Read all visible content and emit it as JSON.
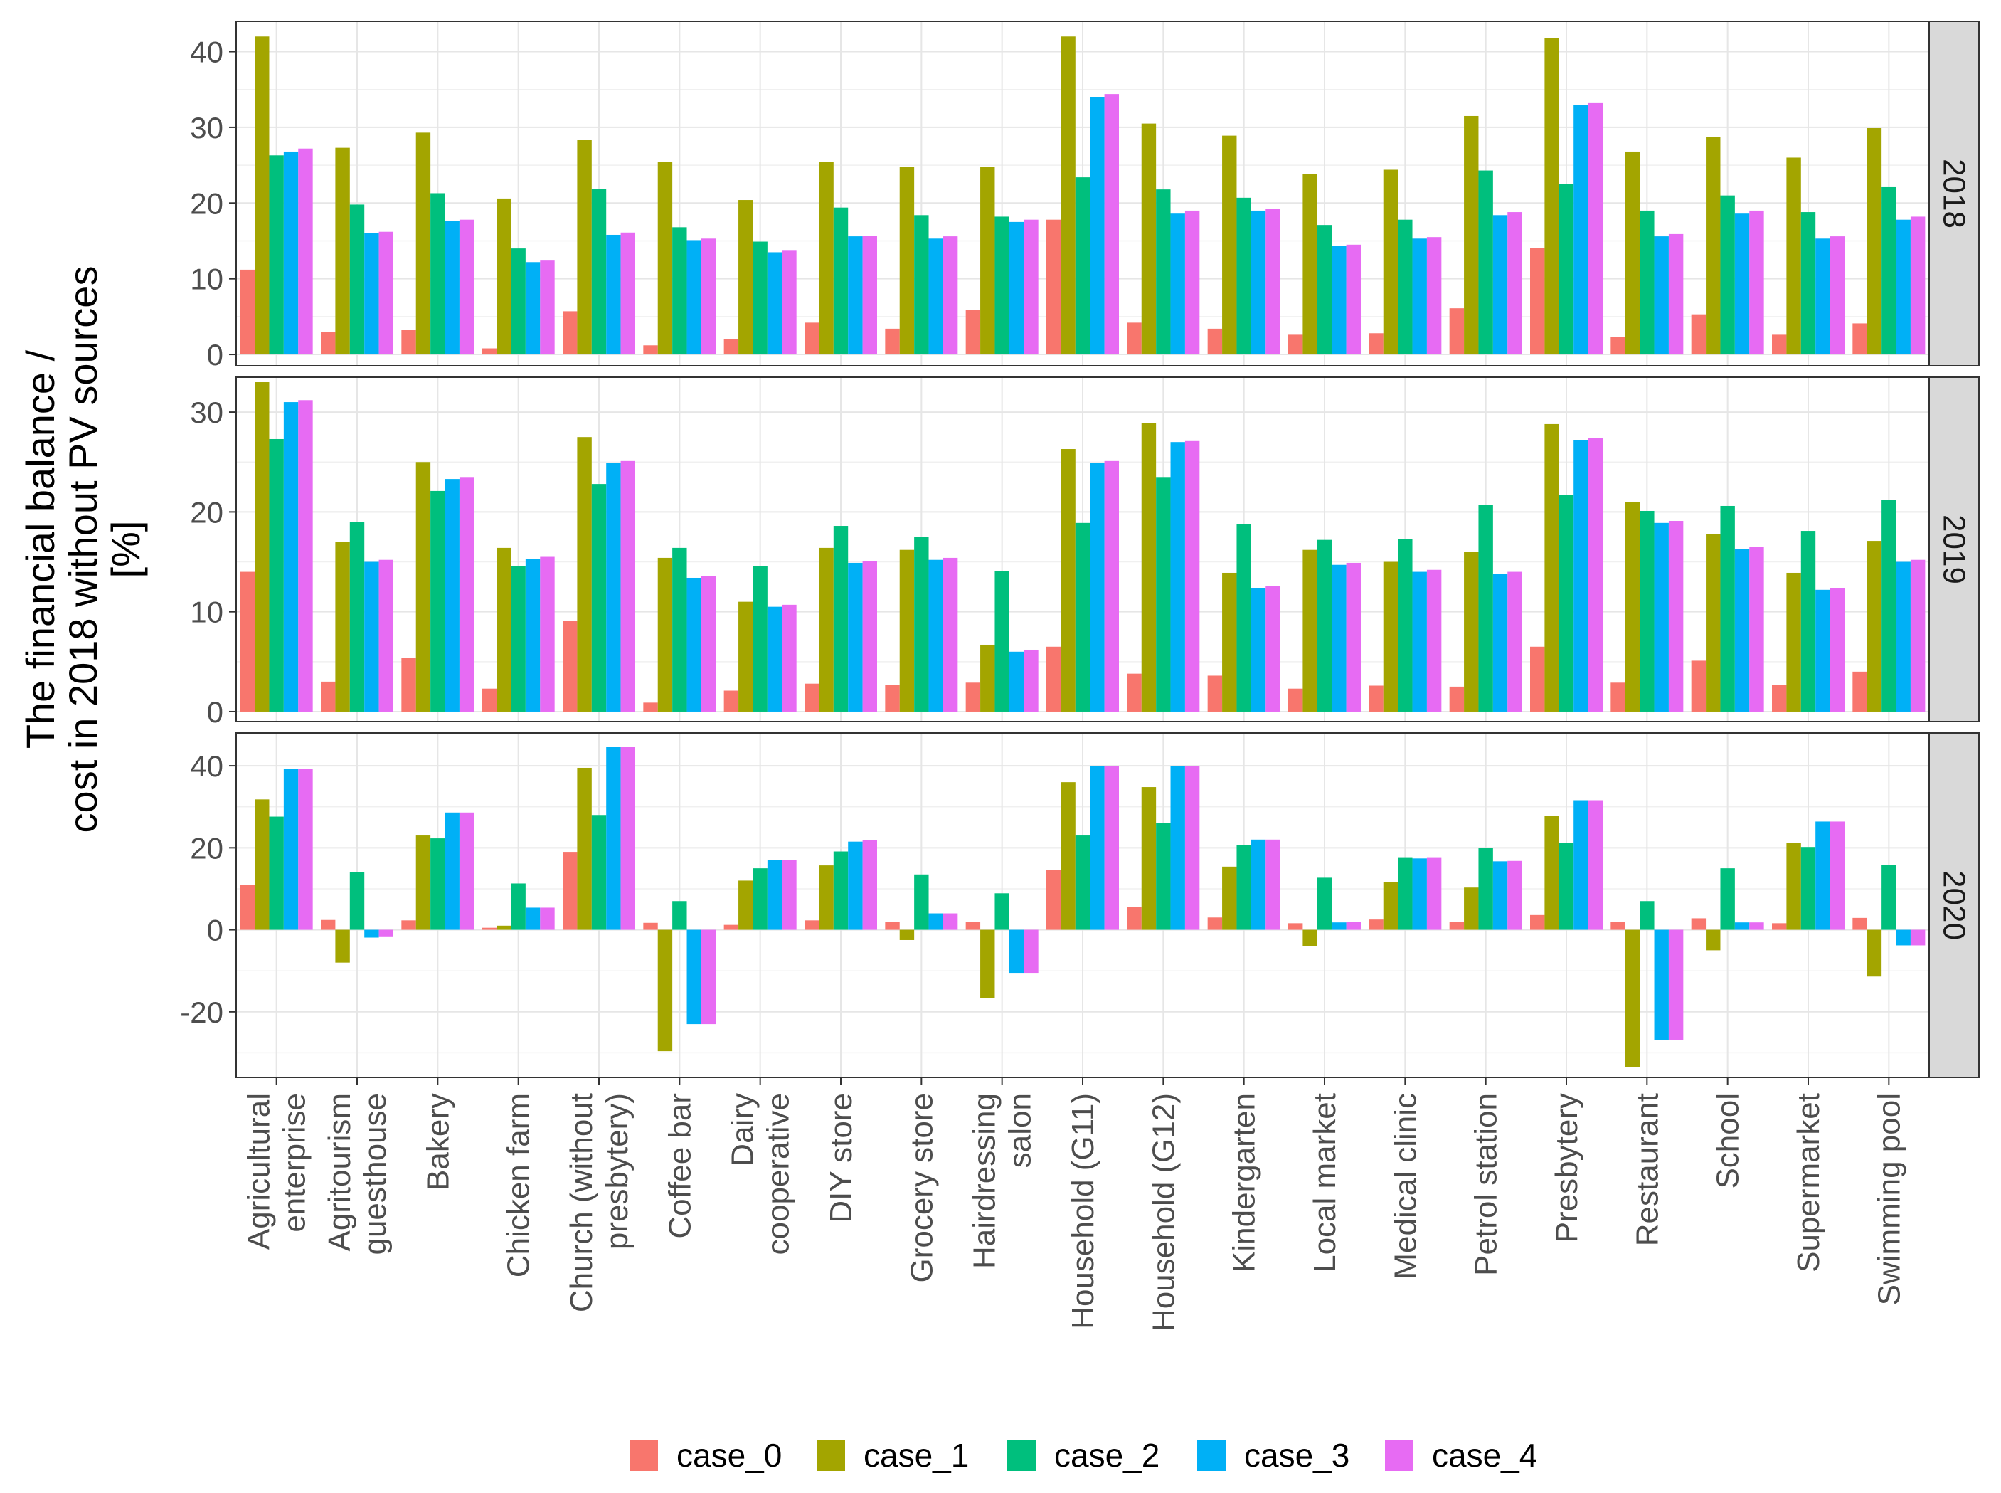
{
  "chart_data": {
    "type": "bar",
    "ylabel_lines": [
      "The financial balance /",
      "cost in 2018 without PV sources",
      "[%]"
    ],
    "xlabel": "",
    "categories": [
      "Agricultural\nenterprise",
      "Agritourism\nguesthouse",
      "Bakery",
      "Chicken farm",
      "Church (without\npresbytery)",
      "Coffee bar",
      "Dairy\ncooperative",
      "DIY store",
      "Grocery store",
      "Hairdressing\nsalon",
      "Household (G11)",
      "Household (G12)",
      "Kindergarten",
      "Local market",
      "Medical clinic",
      "Petrol station",
      "Presbytery",
      "Restaurant",
      "School",
      "Supermarket",
      "Swimming pool"
    ],
    "legend": {
      "position": "bottom",
      "entries": [
        {
          "name": "case_0",
          "color": "#F8766D"
        },
        {
          "name": "case_1",
          "color": "#A3A500"
        },
        {
          "name": "case_2",
          "color": "#00BF7D"
        },
        {
          "name": "case_3",
          "color": "#00B0F6"
        },
        {
          "name": "case_4",
          "color": "#E76BF3"
        }
      ]
    },
    "grid": true,
    "panels": [
      {
        "label": "2018",
        "ylim": [
          -1.5,
          44
        ],
        "yticks": [
          0,
          10,
          20,
          30,
          40
        ],
        "series": [
          {
            "name": "case_0",
            "values": [
              11.2,
              3.0,
              3.2,
              0.8,
              5.7,
              1.2,
              2.0,
              4.2,
              3.4,
              5.9,
              17.8,
              4.2,
              3.4,
              2.6,
              2.8,
              6.1,
              14.1,
              2.3,
              5.3,
              2.6,
              4.1
            ]
          },
          {
            "name": "case_1",
            "values": [
              42.0,
              27.3,
              29.3,
              20.6,
              28.3,
              25.4,
              20.4,
              25.4,
              24.8,
              24.8,
              42.0,
              30.5,
              28.9,
              23.8,
              24.4,
              31.5,
              41.8,
              26.8,
              28.7,
              26.0,
              29.9
            ]
          },
          {
            "name": "case_2",
            "values": [
              26.3,
              19.8,
              21.3,
              14.0,
              21.9,
              16.8,
              14.9,
              19.4,
              18.4,
              18.2,
              23.4,
              21.8,
              20.7,
              17.1,
              17.8,
              24.3,
              22.5,
              19.0,
              21.0,
              18.8,
              22.1
            ]
          },
          {
            "name": "case_3",
            "values": [
              26.8,
              16.0,
              17.6,
              12.2,
              15.8,
              15.1,
              13.5,
              15.6,
              15.3,
              17.5,
              34.0,
              18.6,
              19.0,
              14.3,
              15.3,
              18.4,
              33.0,
              15.6,
              18.6,
              15.3,
              17.8
            ]
          },
          {
            "name": "case_4",
            "values": [
              27.2,
              16.2,
              17.8,
              12.4,
              16.1,
              15.3,
              13.7,
              15.7,
              15.6,
              17.8,
              34.4,
              19.0,
              19.2,
              14.5,
              15.5,
              18.8,
              33.2,
              15.9,
              19.0,
              15.6,
              18.2
            ]
          }
        ]
      },
      {
        "label": "2019",
        "ylim": [
          -1,
          33.5
        ],
        "yticks": [
          0,
          10,
          20,
          30
        ],
        "series": [
          {
            "name": "case_0",
            "values": [
              14.0,
              3.0,
              5.4,
              2.3,
              9.1,
              0.9,
              2.1,
              2.8,
              2.7,
              2.9,
              6.5,
              3.8,
              3.6,
              2.3,
              2.6,
              2.5,
              6.5,
              2.9,
              5.1,
              2.7,
              4.0
            ]
          },
          {
            "name": "case_1",
            "values": [
              33.0,
              17.0,
              25.0,
              16.4,
              27.5,
              15.4,
              11.0,
              16.4,
              16.2,
              6.7,
              26.3,
              28.9,
              13.9,
              16.2,
              15.0,
              16.0,
              28.8,
              21.0,
              17.8,
              13.9,
              17.1
            ]
          },
          {
            "name": "case_2",
            "values": [
              27.3,
              19.0,
              22.1,
              14.6,
              22.8,
              16.4,
              14.6,
              18.6,
              17.5,
              14.1,
              18.9,
              23.5,
              18.8,
              17.2,
              17.3,
              20.7,
              21.7,
              20.1,
              20.6,
              18.1,
              21.2
            ]
          },
          {
            "name": "case_3",
            "values": [
              31.0,
              15.0,
              23.3,
              15.3,
              24.9,
              13.4,
              10.5,
              14.9,
              15.2,
              6.0,
              24.9,
              27.0,
              12.4,
              14.7,
              14.0,
              13.8,
              27.2,
              18.9,
              16.3,
              12.2,
              15.0
            ]
          },
          {
            "name": "case_4",
            "values": [
              31.2,
              15.2,
              23.5,
              15.5,
              25.1,
              13.6,
              10.7,
              15.1,
              15.4,
              6.2,
              25.1,
              27.1,
              12.6,
              14.9,
              14.2,
              14.0,
              27.4,
              19.1,
              16.5,
              12.4,
              15.2
            ]
          }
        ]
      },
      {
        "label": "2020",
        "ylim": [
          -36,
          48
        ],
        "yticks": [
          -20,
          0,
          20,
          40
        ],
        "series": [
          {
            "name": "case_0",
            "values": [
              11.0,
              2.4,
              2.3,
              0.5,
              19.0,
              1.7,
              1.2,
              2.3,
              2.0,
              2.0,
              14.6,
              5.5,
              3.0,
              1.6,
              2.5,
              2.0,
              3.6,
              2.0,
              2.8,
              1.6,
              2.9
            ]
          },
          {
            "name": "case_1",
            "values": [
              31.8,
              -8.0,
              23.0,
              1.0,
              39.5,
              -29.6,
              12.0,
              15.7,
              -2.5,
              -16.6,
              36.0,
              34.8,
              15.4,
              -4.0,
              11.6,
              10.3,
              27.7,
              -33.4,
              -5.0,
              21.2,
              -11.4
            ]
          },
          {
            "name": "case_2",
            "values": [
              27.6,
              14.0,
              22.3,
              11.3,
              28.0,
              7.0,
              15.0,
              19.1,
              13.5,
              8.9,
              23.0,
              26.0,
              20.7,
              12.7,
              17.7,
              19.9,
              21.1,
              7.0,
              15.0,
              20.2,
              15.8
            ]
          },
          {
            "name": "case_3",
            "values": [
              39.3,
              -1.9,
              28.6,
              5.4,
              44.6,
              -23.0,
              17.0,
              21.5,
              4.0,
              -10.5,
              40.0,
              40.0,
              22.0,
              1.8,
              17.4,
              16.7,
              31.6,
              -26.8,
              1.8,
              26.4,
              -3.8
            ]
          },
          {
            "name": "case_4",
            "values": [
              39.3,
              -1.6,
              28.6,
              5.4,
              44.6,
              -23.0,
              17.0,
              21.8,
              4.0,
              -10.5,
              40.0,
              40.0,
              22.0,
              2.0,
              17.7,
              16.8,
              31.6,
              -26.8,
              1.8,
              26.4,
              -3.8
            ]
          }
        ]
      }
    ]
  }
}
